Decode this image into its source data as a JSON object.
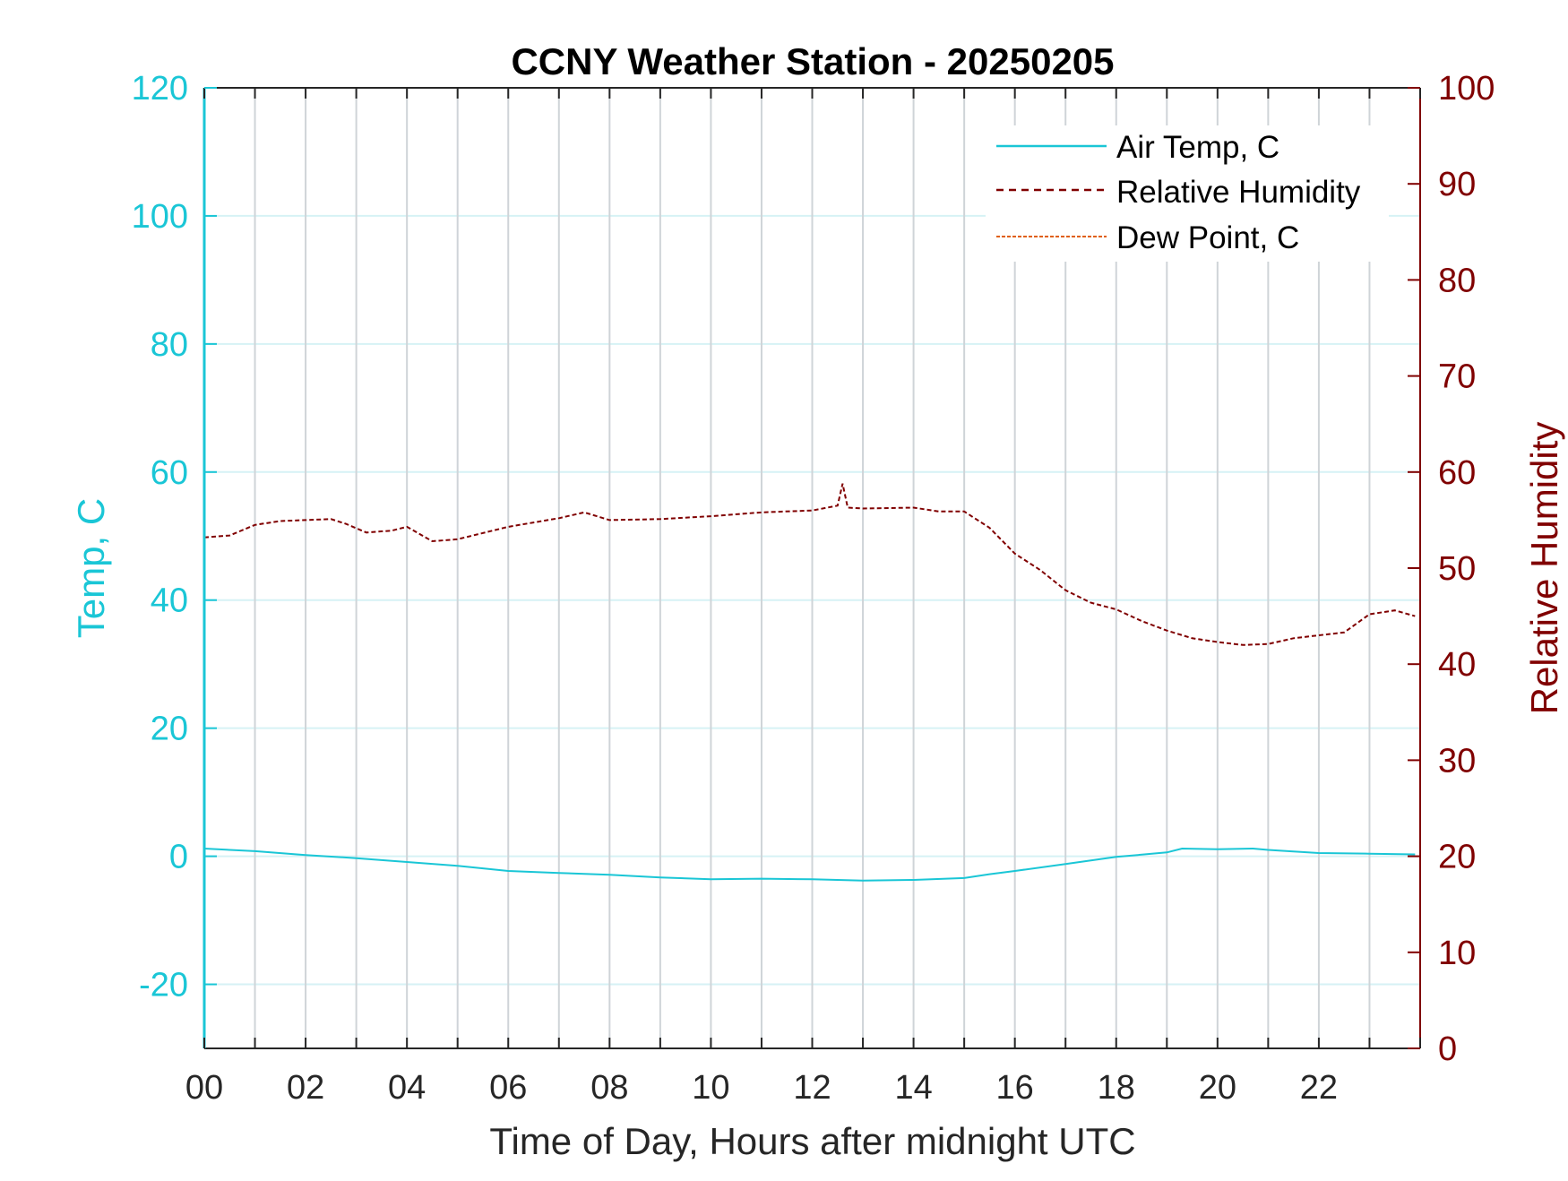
{
  "chart_data": {
    "type": "line",
    "title": "CCNY Weather Station - 20250205",
    "xlabel": "Time of Day, Hours after midnight UTC",
    "ylabel_left": "Temp, C",
    "ylabel_right": "Relative Humidity",
    "xlim": [
      0,
      24
    ],
    "ylim_left": [
      -30,
      120
    ],
    "ylim_right": [
      0,
      100
    ],
    "x_ticks": [
      0,
      2,
      4,
      6,
      8,
      10,
      12,
      14,
      16,
      18,
      20,
      22
    ],
    "x_tick_labels": [
      "00",
      "02",
      "04",
      "06",
      "08",
      "10",
      "12",
      "14",
      "16",
      "18",
      "20",
      "22"
    ],
    "y_left_ticks": [
      -20,
      0,
      20,
      40,
      60,
      80,
      100,
      120
    ],
    "y_right_ticks": [
      0,
      10,
      20,
      30,
      40,
      50,
      60,
      70,
      80,
      90,
      100
    ],
    "grid": true,
    "legend_position": "top-right",
    "colors": {
      "air_temp": "#1ac6d6",
      "humidity": "#800000",
      "dew_point": "#e06010",
      "axes": "#262626",
      "grid_vertical": "#cfd4d8",
      "grid_horizontal": "#d6f2f5"
    },
    "series": [
      {
        "name": "Air Temp, C",
        "axis": "left",
        "style": "solid",
        "x": [
          0,
          1,
          2,
          3,
          4,
          5,
          6,
          7,
          8,
          9,
          10,
          11,
          12,
          13,
          14,
          15,
          15.5,
          16,
          17,
          18,
          19,
          19.3,
          20,
          20.7,
          21,
          22,
          23,
          23.9
        ],
        "y": [
          1.2,
          0.8,
          0.2,
          -0.3,
          -0.9,
          -1.5,
          -2.3,
          -2.6,
          -2.9,
          -3.3,
          -3.6,
          -3.5,
          -3.6,
          -3.8,
          -3.7,
          -3.4,
          -2.8,
          -2.3,
          -1.2,
          -0.1,
          0.6,
          1.2,
          1.1,
          1.2,
          1.0,
          0.5,
          0.4,
          0.3
        ]
      },
      {
        "name": "Relative Humidity",
        "axis": "right",
        "style": "dashed",
        "x": [
          0,
          0.5,
          1,
          1.5,
          2,
          2.5,
          2.8,
          3.2,
          3.7,
          4,
          4.5,
          5,
          6,
          7,
          7.5,
          8,
          9,
          10,
          11,
          12,
          12.5,
          12.6,
          12.7,
          13,
          14,
          14.5,
          15,
          15.5,
          16,
          16.5,
          17,
          17.5,
          18,
          18.5,
          19,
          19.5,
          20,
          20.5,
          21,
          21.5,
          22,
          22.5,
          23,
          23.5,
          23.9
        ],
        "y": [
          53.2,
          53.4,
          54.5,
          54.9,
          55.0,
          55.1,
          54.6,
          53.7,
          53.9,
          54.3,
          52.8,
          53.0,
          54.3,
          55.2,
          55.8,
          55.0,
          55.1,
          55.4,
          55.8,
          56.0,
          56.5,
          58.8,
          56.3,
          56.2,
          56.3,
          55.9,
          55.9,
          54.2,
          51.5,
          49.8,
          47.7,
          46.4,
          45.7,
          44.5,
          43.5,
          42.7,
          42.3,
          42.0,
          42.1,
          42.7,
          43.0,
          43.3,
          45.2,
          45.6,
          45.0
        ]
      },
      {
        "name": "Dew Point, C",
        "axis": "left",
        "style": "dashed",
        "x": [],
        "y": []
      }
    ]
  }
}
